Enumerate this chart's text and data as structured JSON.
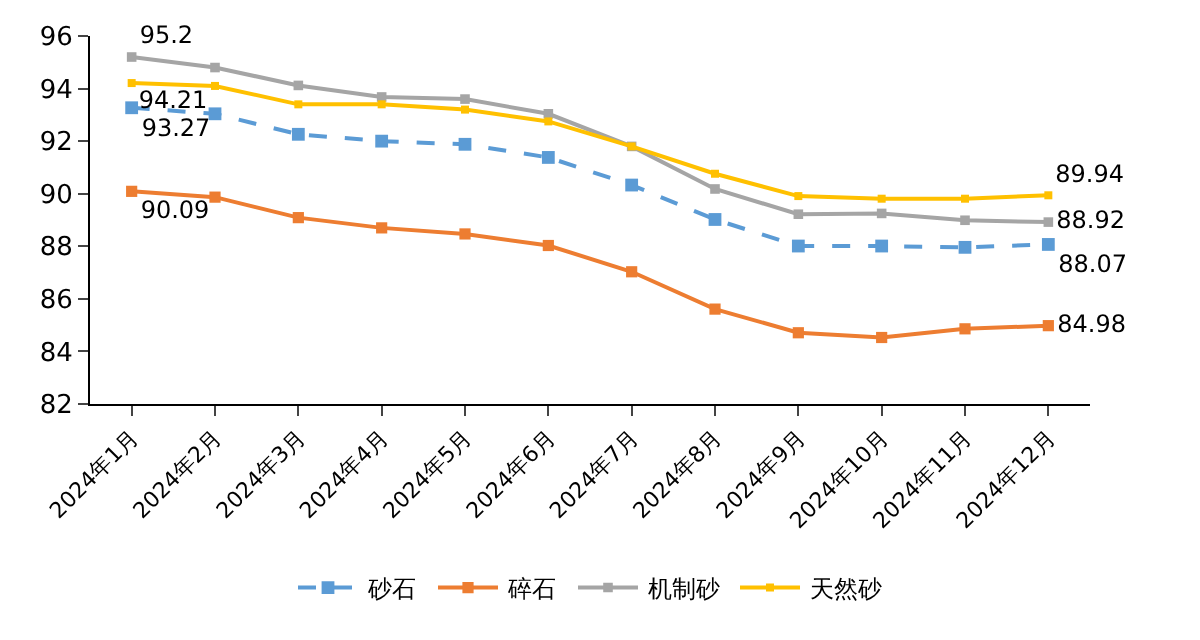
{
  "chart_data": {
    "type": "line",
    "categories": [
      "2024年1月",
      "2024年2月",
      "2024年3月",
      "2024年4月",
      "2024年5月",
      "2024年6月",
      "2024年7月",
      "2024年8月",
      "2024年9月",
      "2024年10月",
      "2024年11月",
      "2024年12月"
    ],
    "ylim": [
      82,
      96
    ],
    "yticks": [
      82,
      84,
      86,
      88,
      90,
      92,
      94,
      96
    ],
    "grid": false,
    "legend": "bottom",
    "marker": "square",
    "series": [
      {
        "name": "砂石",
        "color": "#5b9bd5",
        "line_style": "dashed",
        "values": [
          93.27,
          93.04,
          92.26,
          92.0,
          91.88,
          91.38,
          90.33,
          89.02,
          88.01,
          88.01,
          87.96,
          88.07
        ],
        "value_labels": [
          "93.27",
          null,
          null,
          null,
          null,
          null,
          null,
          null,
          null,
          null,
          null,
          "88.07"
        ]
      },
      {
        "name": "碎石",
        "color": "#ed7d31",
        "line_style": "solid",
        "values": [
          90.09,
          89.87,
          89.09,
          88.7,
          88.47,
          88.03,
          87.03,
          85.61,
          84.71,
          84.53,
          84.86,
          84.98
        ],
        "value_labels": [
          "90.09",
          null,
          null,
          null,
          null,
          null,
          null,
          null,
          null,
          null,
          null,
          "84.98"
        ]
      },
      {
        "name": "机制砂",
        "color": "#a5a5a5",
        "line_style": "solid",
        "values": [
          95.2,
          94.8,
          94.12,
          93.68,
          93.6,
          93.04,
          91.8,
          90.18,
          89.22,
          89.25,
          88.99,
          88.92
        ],
        "value_labels": [
          "95.2",
          null,
          null,
          null,
          null,
          null,
          null,
          null,
          null,
          null,
          null,
          "88.92"
        ]
      },
      {
        "name": "天然砂",
        "color": "#ffc000",
        "line_style": "solid",
        "values": [
          94.21,
          94.1,
          93.4,
          93.4,
          93.2,
          92.75,
          91.8,
          90.76,
          89.91,
          89.81,
          89.81,
          89.94
        ],
        "value_labels": [
          "94.21",
          null,
          null,
          null,
          null,
          null,
          null,
          null,
          null,
          null,
          null,
          "89.94"
        ]
      }
    ]
  }
}
